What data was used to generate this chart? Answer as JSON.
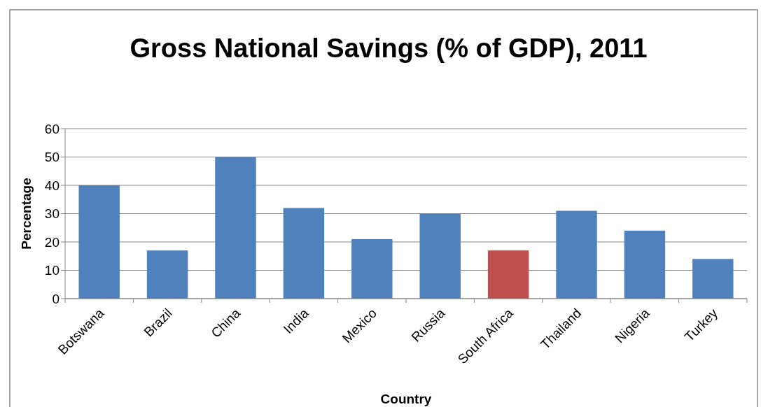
{
  "chart_data": {
    "type": "bar",
    "title": "Gross National Savings (% of GDP), 2011",
    "xlabel": "Country",
    "ylabel": "Percentage",
    "categories": [
      "Botswana",
      "Brazil",
      "China",
      "India",
      "Mexico",
      "Russia",
      "South Africa",
      "Thailand",
      "Nigeria",
      "Turkey"
    ],
    "values": [
      40,
      17,
      50,
      32,
      21,
      30,
      17,
      31,
      24,
      14
    ],
    "colors": [
      "#4f81bd",
      "#4f81bd",
      "#4f81bd",
      "#4f81bd",
      "#4f81bd",
      "#4f81bd",
      "#c0504d",
      "#4f81bd",
      "#4f81bd",
      "#4f81bd"
    ],
    "ylim": [
      0,
      60
    ],
    "yticks": [
      0,
      10,
      20,
      30,
      40,
      50,
      60
    ],
    "grid": "y"
  }
}
